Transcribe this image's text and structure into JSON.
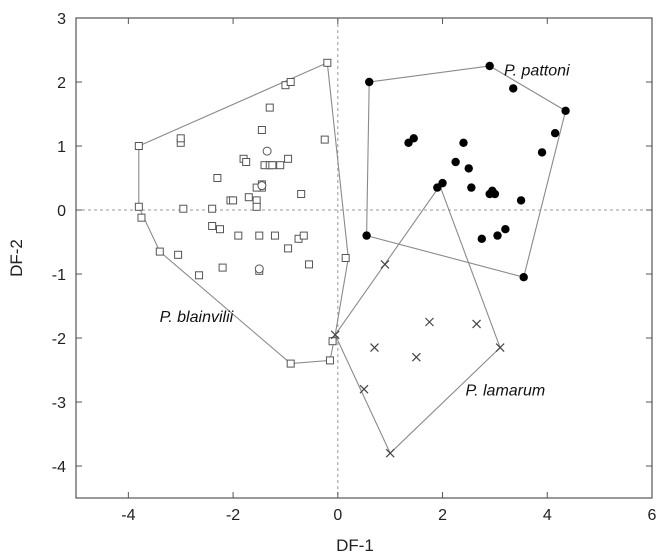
{
  "chart_data": {
    "type": "scatter",
    "title": "",
    "xlabel": "DF-1",
    "ylabel": "DF-2",
    "xlim": [
      -5,
      6
    ],
    "ylim": [
      -4.5,
      3
    ],
    "x_ticks": [
      -4,
      -2,
      0,
      2,
      4,
      6
    ],
    "y_ticks": [
      3,
      2,
      1,
      0,
      -1,
      -2,
      -3,
      -4
    ],
    "zero_lines": true,
    "grid": false,
    "series": [
      {
        "name": "P. blainvilii",
        "marker": "open-square",
        "points": [
          [
            -3.8,
            1.0
          ],
          [
            -3.8,
            0.05
          ],
          [
            -3.75,
            -0.12
          ],
          [
            -3.4,
            -0.65
          ],
          [
            -3.05,
            -0.7
          ],
          [
            -3.0,
            1.05
          ],
          [
            -3.0,
            1.12
          ],
          [
            -2.95,
            0.02
          ],
          [
            -2.65,
            -1.02
          ],
          [
            -2.4,
            0.02
          ],
          [
            -2.4,
            -0.25
          ],
          [
            -2.3,
            0.5
          ],
          [
            -2.25,
            -0.3
          ],
          [
            -2.2,
            -0.9
          ],
          [
            -2.05,
            0.15
          ],
          [
            -1.9,
            -0.4
          ],
          [
            -1.8,
            0.8
          ],
          [
            -1.75,
            0.75
          ],
          [
            -1.7,
            0.2
          ],
          [
            -1.55,
            0.15
          ],
          [
            -1.55,
            0.05
          ],
          [
            -1.5,
            -0.4
          ],
          [
            -1.5,
            -0.95
          ],
          [
            -1.45,
            0.35
          ],
          [
            -1.45,
            1.25
          ],
          [
            -1.4,
            0.7
          ],
          [
            -1.3,
            0.7
          ],
          [
            -1.3,
            1.6
          ],
          [
            -1.25,
            0.7
          ],
          [
            -1.2,
            -0.4
          ],
          [
            -1.1,
            0.7
          ],
          [
            -1.0,
            1.95
          ],
          [
            -0.95,
            0.8
          ],
          [
            -0.95,
            -0.6
          ],
          [
            -0.9,
            2.0
          ],
          [
            -0.75,
            -0.45
          ],
          [
            -0.7,
            0.25
          ],
          [
            -0.65,
            -0.4
          ],
          [
            -0.55,
            -0.85
          ],
          [
            -0.25,
            1.1
          ],
          [
            -0.2,
            2.3
          ],
          [
            -0.15,
            -2.35
          ],
          [
            -0.1,
            -2.05
          ],
          [
            0.15,
            -0.75
          ],
          [
            -0.9,
            -2.4
          ],
          [
            -1.45,
            0.4
          ],
          [
            -1.55,
            0.35
          ],
          [
            -2.0,
            0.15
          ]
        ]
      },
      {
        "name": "P. blainvilii (circles)",
        "marker": "open-circle",
        "points": [
          [
            -1.45,
            0.38
          ],
          [
            -1.5,
            -0.92
          ],
          [
            -1.35,
            0.92
          ]
        ]
      },
      {
        "name": "P. pattoni",
        "marker": "filled-circle",
        "points": [
          [
            0.6,
            2.0
          ],
          [
            0.55,
            -0.4
          ],
          [
            1.35,
            1.05
          ],
          [
            1.45,
            1.12
          ],
          [
            1.9,
            0.35
          ],
          [
            2.0,
            0.42
          ],
          [
            2.25,
            0.75
          ],
          [
            2.4,
            1.05
          ],
          [
            2.5,
            0.65
          ],
          [
            2.55,
            0.35
          ],
          [
            2.75,
            -0.45
          ],
          [
            2.9,
            0.25
          ],
          [
            2.95,
            0.3
          ],
          [
            3.0,
            0.25
          ],
          [
            3.05,
            -0.4
          ],
          [
            3.2,
            -0.3
          ],
          [
            3.35,
            1.9
          ],
          [
            3.5,
            0.15
          ],
          [
            3.55,
            -1.05
          ],
          [
            3.9,
            0.9
          ],
          [
            4.15,
            1.2
          ],
          [
            4.35,
            1.55
          ],
          [
            2.9,
            2.25
          ]
        ]
      },
      {
        "name": "P. lamarum",
        "marker": "x",
        "points": [
          [
            -0.05,
            -1.95
          ],
          [
            0.5,
            -2.8
          ],
          [
            0.7,
            -2.15
          ],
          [
            0.9,
            -0.85
          ],
          [
            1.0,
            -3.8
          ],
          [
            1.5,
            -2.3
          ],
          [
            1.75,
            -1.75
          ],
          [
            2.65,
            -1.78
          ],
          [
            3.1,
            -2.15
          ]
        ]
      }
    ],
    "hulls": [
      {
        "name": "P. blainvilii",
        "points": [
          [
            -0.2,
            2.3
          ],
          [
            0.2,
            -0.75
          ],
          [
            -0.05,
            -1.95
          ],
          [
            -0.15,
            -2.35
          ],
          [
            -0.9,
            -2.4
          ],
          [
            -3.4,
            -0.65
          ],
          [
            -3.8,
            0.05
          ],
          [
            -3.8,
            1.0
          ]
        ]
      },
      {
        "name": "P. pattoni",
        "points": [
          [
            0.6,
            2.0
          ],
          [
            2.9,
            2.25
          ],
          [
            4.35,
            1.55
          ],
          [
            3.55,
            -1.05
          ],
          [
            0.55,
            -0.4
          ]
        ]
      },
      {
        "name": "P. lamarum",
        "points": [
          [
            1.95,
            0.38
          ],
          [
            3.1,
            -2.15
          ],
          [
            1.0,
            -3.8
          ],
          [
            -0.05,
            -1.95
          ]
        ]
      }
    ],
    "annotations": [
      {
        "text": "P. pattoni",
        "x": 3.8,
        "y": 2.1
      },
      {
        "text": "P. blainvilii",
        "x": -2.7,
        "y": -1.75
      },
      {
        "text": "P. lamarum",
        "x": 3.2,
        "y": -2.9
      }
    ]
  }
}
